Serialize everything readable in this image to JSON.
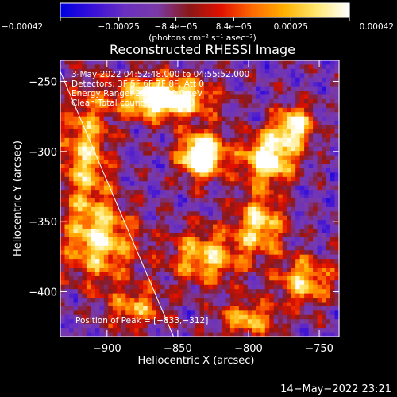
{
  "chart_data": {
    "type": "heatmap",
    "title": "Reconstructed RHESSI Image",
    "xlabel": "Heliocentric X (arcsec)",
    "ylabel": "Heliocentric Y (arcsec)",
    "xlim": [
      -933,
      -736
    ],
    "ylim": [
      -432,
      -235
    ],
    "x_ticks": [
      -900,
      -850,
      -800,
      -750
    ],
    "x_tick_labels": [
      "−900",
      "−850",
      "−800",
      "−750"
    ],
    "y_ticks": [
      -400,
      -350,
      -300,
      -250
    ],
    "y_tick_labels": [
      "−400",
      "−350",
      "−300",
      "−250"
    ],
    "colorbar": {
      "range": [
        -0.00042,
        0.00042
      ],
      "ticks": [
        -0.00042,
        -0.00025,
        -8.4e-05,
        8.4e-05,
        0.00025,
        0.00042
      ],
      "tick_labels": [
        "−0.00042",
        "−0.00025",
        "−8.4e−05",
        "8.4e−05",
        "0.00025",
        "0.00042"
      ],
      "unit_label": "(photons cm⁻² s⁻¹ asec⁻²)",
      "colors": [
        "#0000e0",
        "#3a10d8",
        "#6a30c0",
        "#7a3aa8",
        "#8a1818",
        "#e01000",
        "#ff6a00",
        "#ffb000",
        "#ffe870",
        "#ffffff"
      ]
    },
    "annotations": {
      "time_range": "3-May-2022 04:52:48.000 to 04:55:52.000",
      "detectors": "Detectors: 3F 5F 6F 7F 8F, Att 0",
      "energy_range": "Energy Range: 25.0 − 50.0 keV",
      "clean_counts": "Clean     Total counts: 2.73E+03",
      "peak_position": "Position of Peak = [−833,−312]"
    },
    "peak": {
      "x": -833,
      "y": -312
    },
    "hotspots": [
      {
        "x": -860,
        "y": -262,
        "amp": 0.95,
        "sx": 22,
        "sy": 10
      },
      {
        "x": -833,
        "y": -303,
        "amp": 1.0,
        "sx": 11,
        "sy": 11
      },
      {
        "x": -786,
        "y": -305,
        "amp": 0.8,
        "sx": 13,
        "sy": 12
      },
      {
        "x": -768,
        "y": -282,
        "amp": 0.7,
        "sx": 10,
        "sy": 10
      },
      {
        "x": -915,
        "y": -300,
        "amp": 0.55,
        "sx": 12,
        "sy": 30
      },
      {
        "x": -905,
        "y": -365,
        "amp": 0.6,
        "sx": 18,
        "sy": 20
      },
      {
        "x": -830,
        "y": -375,
        "amp": 0.55,
        "sx": 18,
        "sy": 14
      },
      {
        "x": -792,
        "y": -352,
        "amp": 0.6,
        "sx": 12,
        "sy": 15
      },
      {
        "x": -760,
        "y": -392,
        "amp": 0.55,
        "sx": 14,
        "sy": 12
      },
      {
        "x": -800,
        "y": -420,
        "amp": 0.5,
        "sx": 15,
        "sy": 9
      },
      {
        "x": -880,
        "y": -412,
        "amp": 0.45,
        "sx": 14,
        "sy": 10
      }
    ],
    "limb_line": {
      "x1": -933,
      "y1": -243,
      "x2": -853,
      "y2": -432
    }
  },
  "footer": {
    "timestamp": "14−May−2022 23:21"
  }
}
